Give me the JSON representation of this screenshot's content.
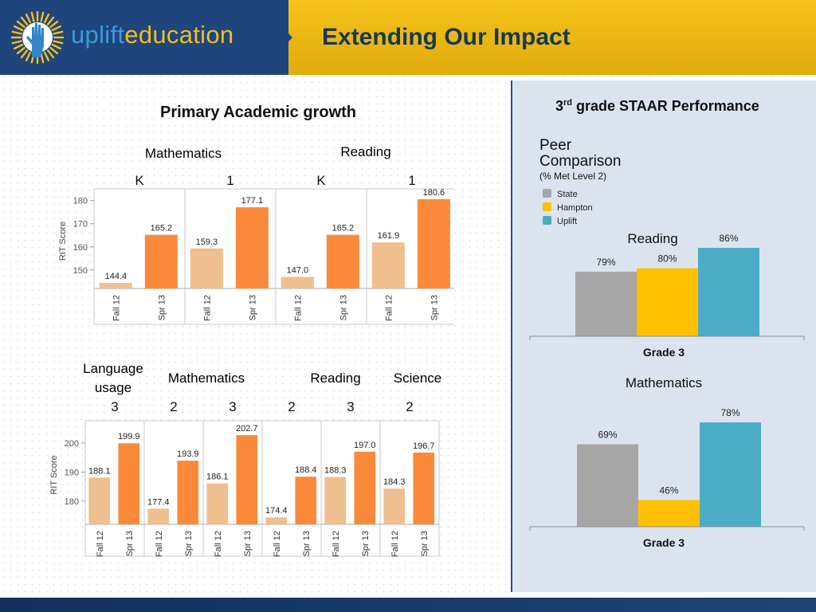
{
  "header": {
    "brand_part1": "uplift",
    "brand_part2": "education",
    "title": "Extending Our Impact",
    "logo_icon": "raised-hand-sun-icon"
  },
  "left": {
    "section_title": "Primary Academic growth",
    "top_subjects": [
      "Mathematics",
      "Reading"
    ],
    "bottom_subjects": [
      "Language usage",
      "Mathematics",
      "Reading",
      "Science"
    ]
  },
  "right": {
    "title_prefix": "3",
    "title_sup": "rd",
    "title_rest": " grade STAAR Performance",
    "peer_line1": "Peer",
    "peer_line2": "Comparison",
    "peer_sub": "(% Met Level 2)"
  },
  "colors": {
    "fall": "#efbf8f",
    "spring": "#fa8a3a",
    "state": "#a6a6a6",
    "hampton": "#ffc000",
    "uplift": "#4bacc6",
    "brand_blue": "#1f467c",
    "brand_gold": "#f2bd1f"
  },
  "chart_data": [
    {
      "type": "bar",
      "title": "Primary Academic growth (K-1)",
      "ylabel": "RIT Score",
      "ylim": [
        142,
        183
      ],
      "yticks": [
        150,
        160,
        170,
        180
      ],
      "groups": [
        {
          "subject": "Mathematics",
          "grade": "K",
          "categories": [
            "Fall 12",
            "Spr 13"
          ],
          "values": [
            144.4,
            165.2
          ],
          "labels": [
            "144.4",
            "165.2"
          ]
        },
        {
          "subject": "Mathematics",
          "grade": "1",
          "categories": [
            "Fall 12",
            "Spr 13"
          ],
          "values": [
            159.3,
            177.1
          ],
          "labels": [
            "159.3",
            "177.1"
          ]
        },
        {
          "subject": "Reading",
          "grade": "K",
          "categories": [
            "Fall 12",
            "Spr 13"
          ],
          "values": [
            147.0,
            165.2
          ],
          "labels": [
            "147.0",
            "165.2"
          ]
        },
        {
          "subject": "Reading",
          "grade": "1",
          "categories": [
            "Fall 12",
            "Spr 13"
          ],
          "values": [
            161.9,
            180.6
          ],
          "labels": [
            "161.9",
            "180.6"
          ]
        }
      ]
    },
    {
      "type": "bar",
      "title": "Primary Academic growth (2-3)",
      "ylabel": "RIT Score",
      "ylim": [
        172,
        206
      ],
      "yticks": [
        180,
        190,
        200
      ],
      "groups": [
        {
          "subject": "Language usage",
          "grade": "3",
          "categories": [
            "Fall 12",
            "Spr 13"
          ],
          "values": [
            188.1,
            199.9
          ],
          "labels": [
            "188.1",
            "199.9"
          ]
        },
        {
          "subject": "Mathematics",
          "grade": "2",
          "categories": [
            "Fall 12",
            "Spr 13"
          ],
          "values": [
            177.4,
            193.9
          ],
          "labels": [
            "177.4",
            "193.9"
          ]
        },
        {
          "subject": "Mathematics",
          "grade": "3",
          "categories": [
            "Fall 12",
            "Spr 13"
          ],
          "values": [
            186.1,
            202.7
          ],
          "labels": [
            "186.1",
            "202.7"
          ]
        },
        {
          "subject": "Reading",
          "grade": "2",
          "categories": [
            "Fall 12",
            "Spr 13"
          ],
          "values": [
            174.4,
            188.4
          ],
          "labels": [
            "174.4",
            "188.4"
          ]
        },
        {
          "subject": "Reading",
          "grade": "3",
          "categories": [
            "Fall 12",
            "Spr 13"
          ],
          "values": [
            188.3,
            197.0
          ],
          "labels": [
            "188.3",
            "197.0"
          ]
        },
        {
          "subject": "Science",
          "grade": "2",
          "categories": [
            "Fall 12",
            "Spr 13"
          ],
          "values": [
            184.3,
            196.7
          ],
          "labels": [
            "184.3",
            "196.7"
          ]
        }
      ]
    },
    {
      "type": "bar",
      "title": "Reading",
      "xlabel": "Grade 3",
      "ylim": [
        60,
        90
      ],
      "legend": [
        "State",
        "Hampton",
        "Uplift"
      ],
      "legend_position": "top-left",
      "series": [
        {
          "name": "State",
          "values": [
            79
          ],
          "label": "79%"
        },
        {
          "name": "Hampton",
          "values": [
            80
          ],
          "label": "80%"
        },
        {
          "name": "Uplift",
          "values": [
            86
          ],
          "label": "86%"
        }
      ]
    },
    {
      "type": "bar",
      "title": "Mathematics",
      "xlabel": "Grade 3",
      "ylim": [
        35,
        80
      ],
      "legend": [
        "State",
        "Hampton",
        "Uplift"
      ],
      "series": [
        {
          "name": "State",
          "values": [
            69
          ],
          "label": "69%"
        },
        {
          "name": "Hampton",
          "values": [
            46
          ],
          "label": "46%"
        },
        {
          "name": "Uplift",
          "values": [
            78
          ],
          "label": "78%"
        }
      ]
    }
  ]
}
